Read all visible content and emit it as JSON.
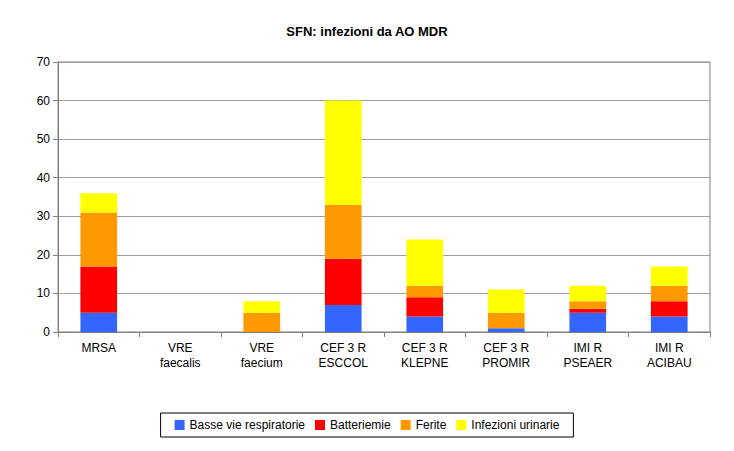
{
  "chart_data": {
    "type": "bar",
    "title": "SFN: infezioni da AO MDR",
    "categories": [
      "MRSA",
      "VRE\nfaecalis",
      "VRE\nfaecium",
      "CEF 3 R\nESCCOL",
      "CEF 3 R\nKLEPNE",
      "CEF 3 R\nPROMIR",
      "IMI R\nPSEAER",
      "IMI R\nACIBAU"
    ],
    "series": [
      {
        "name": "Basse vie respiratorie",
        "color": "#3366ff",
        "values": [
          5,
          0,
          0,
          7,
          4,
          1,
          5,
          4
        ]
      },
      {
        "name": "Batteriemie",
        "color": "#ff0000",
        "values": [
          12,
          0,
          0,
          12,
          5,
          0,
          1,
          4
        ]
      },
      {
        "name": "Ferite",
        "color": "#ff9900",
        "values": [
          14,
          0,
          5,
          14,
          3,
          4,
          2,
          4
        ]
      },
      {
        "name": "Infezioni urinarie",
        "color": "#ffff00",
        "values": [
          5,
          0,
          3,
          27,
          12,
          6,
          4,
          5
        ]
      }
    ],
    "stacked": true,
    "ylim": [
      0,
      70
    ],
    "yticks": [
      0,
      10,
      20,
      30,
      40,
      50,
      60,
      70
    ],
    "grid": true,
    "legend": "bottom"
  }
}
